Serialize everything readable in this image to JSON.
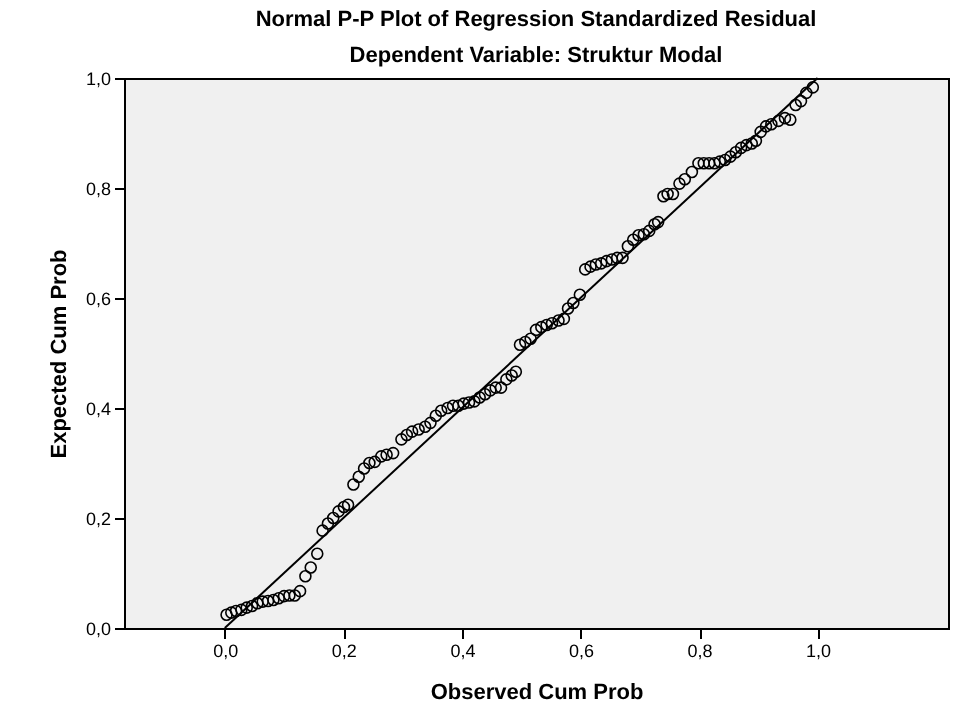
{
  "chart_data": {
    "type": "scatter",
    "title": "Normal P-P Plot of Regression Standardized Residual",
    "subtitle": "Dependent Variable: Struktur Modal",
    "xlabel": "Observed Cum Prob",
    "ylabel": "Expected Cum Prob",
    "xlim": [
      -0.17,
      1.22
    ],
    "ylim": [
      0,
      1
    ],
    "xticks": [
      {
        "value": 0,
        "label": "0,0"
      },
      {
        "value": 0.2,
        "label": "0,2"
      },
      {
        "value": 0.4,
        "label": "0,4"
      },
      {
        "value": 0.6,
        "label": "0,6"
      },
      {
        "value": 0.8,
        "label": "0,8"
      },
      {
        "value": 1,
        "label": "1,0"
      }
    ],
    "yticks": [
      {
        "value": 0,
        "label": "0,0"
      },
      {
        "value": 0.2,
        "label": "0,2"
      },
      {
        "value": 0.4,
        "label": "0,4"
      },
      {
        "value": 0.6,
        "label": "0,6"
      },
      {
        "value": 0.8,
        "label": "0,8"
      },
      {
        "value": 1,
        "label": "1,0"
      }
    ],
    "grid": false,
    "series": [
      {
        "type": "scatter",
        "color": "#000000",
        "marker": "circle",
        "x": [
          0.003,
          0.011,
          0.019,
          0.028,
          0.037,
          0.046,
          0.055,
          0.064,
          0.073,
          0.082,
          0.091,
          0.1,
          0.109,
          0.118,
          0.127,
          0.136,
          0.145,
          0.156,
          0.165,
          0.174,
          0.183,
          0.192,
          0.201,
          0.208,
          0.217,
          0.226,
          0.235,
          0.244,
          0.253,
          0.264,
          0.273,
          0.284,
          0.298,
          0.307,
          0.316,
          0.327,
          0.338,
          0.347,
          0.356,
          0.365,
          0.376,
          0.385,
          0.394,
          0.403,
          0.412,
          0.421,
          0.43,
          0.439,
          0.448,
          0.457,
          0.466,
          0.475,
          0.484,
          0.491,
          0.498,
          0.507,
          0.516,
          0.525,
          0.534,
          0.543,
          0.552,
          0.563,
          0.572,
          0.579,
          0.588,
          0.599,
          0.608,
          0.617,
          0.626,
          0.635,
          0.644,
          0.653,
          0.662,
          0.671,
          0.68,
          0.689,
          0.698,
          0.707,
          0.716,
          0.725,
          0.731,
          0.74,
          0.747,
          0.756,
          0.767,
          0.776,
          0.788,
          0.799,
          0.808,
          0.817,
          0.826,
          0.835,
          0.844,
          0.853,
          0.862,
          0.871,
          0.88,
          0.889,
          0.896,
          0.904,
          0.913,
          0.922,
          0.934,
          0.945,
          0.954,
          0.963,
          0.972,
          0.981,
          0.992
        ],
        "values": [
          0.024,
          0.028,
          0.031,
          0.033,
          0.037,
          0.04,
          0.045,
          0.048,
          0.049,
          0.051,
          0.054,
          0.058,
          0.059,
          0.059,
          0.067,
          0.094,
          0.11,
          0.135,
          0.177,
          0.19,
          0.2,
          0.212,
          0.22,
          0.224,
          0.261,
          0.275,
          0.29,
          0.3,
          0.302,
          0.312,
          0.315,
          0.318,
          0.343,
          0.351,
          0.357,
          0.361,
          0.366,
          0.373,
          0.386,
          0.395,
          0.4,
          0.404,
          0.404,
          0.408,
          0.41,
          0.412,
          0.419,
          0.425,
          0.432,
          0.437,
          0.437,
          0.452,
          0.459,
          0.466,
          0.515,
          0.52,
          0.526,
          0.542,
          0.547,
          0.551,
          0.554,
          0.559,
          0.562,
          0.581,
          0.591,
          0.606,
          0.652,
          0.657,
          0.661,
          0.663,
          0.667,
          0.67,
          0.673,
          0.673,
          0.694,
          0.706,
          0.714,
          0.716,
          0.722,
          0.734,
          0.738,
          0.785,
          0.789,
          0.789,
          0.808,
          0.816,
          0.829,
          0.845,
          0.845,
          0.845,
          0.845,
          0.848,
          0.851,
          0.857,
          0.865,
          0.873,
          0.878,
          0.881,
          0.886,
          0.902,
          0.912,
          0.916,
          0.922,
          0.927,
          0.924,
          0.951,
          0.958,
          0.973,
          0.983
        ]
      },
      {
        "type": "line",
        "color": "#000000",
        "line_style": "solid",
        "x": [
          0,
          1
        ],
        "values": [
          0,
          1
        ]
      }
    ]
  }
}
